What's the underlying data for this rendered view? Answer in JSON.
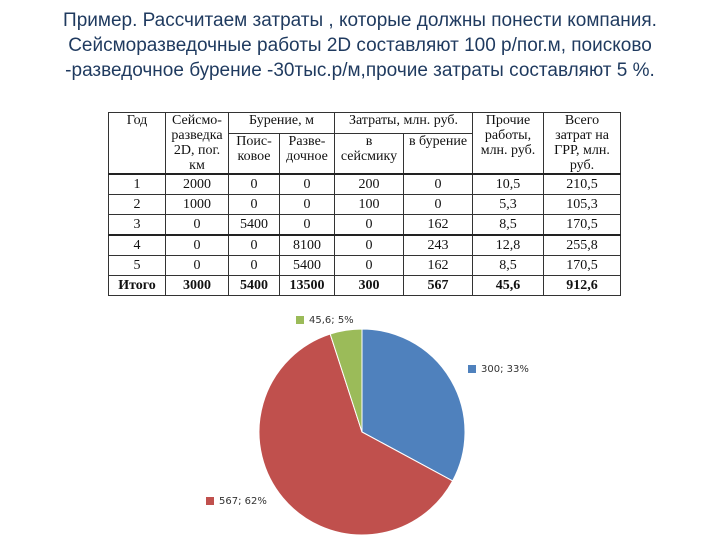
{
  "title": "Пример. Рассчитаем затраты , которые должны понести компания. Сейсморазведочные работы 2D составляют 100 р/пог.м, поисково -разведочное бурение -30тыс.р/м,прочие затраты составляют 5 %.",
  "table": {
    "headers": {
      "year": "Год",
      "seismic": "Сейсмо-разведка 2D, пог. км",
      "drilling_group": "Бурение, м",
      "drill_search": "Поис-ковое",
      "drill_explore": "Разве-дочное",
      "costs_group": "Затраты, млн. руб.",
      "cost_seismic": "в сейсмику",
      "cost_drilling": "в бурение",
      "other": "Прочие работы, млн. руб.",
      "total": "Всего затрат на ГРР, млн. руб."
    },
    "rows": [
      [
        "1",
        "2000",
        "0",
        "0",
        "200",
        "0",
        "10,5",
        "210,5"
      ],
      [
        "2",
        "1000",
        "0",
        "0",
        "100",
        "0",
        "5,3",
        "105,3"
      ],
      [
        "3",
        "0",
        "5400",
        "0",
        "0",
        "162",
        "8,5",
        "170,5"
      ],
      [
        "4",
        "0",
        "0",
        "8100",
        "0",
        "243",
        "12,8",
        "255,8"
      ],
      [
        "5",
        "0",
        "0",
        "5400",
        "0",
        "162",
        "8,5",
        "170,5"
      ],
      [
        "Итого",
        "3000",
        "5400",
        "13500",
        "300",
        "567",
        "45,6",
        "912,6"
      ]
    ]
  },
  "chart_data": {
    "type": "pie",
    "slices": [
      {
        "label": "300; 33%",
        "value": 300,
        "color": "#4f81bd"
      },
      {
        "label": "567; 62%",
        "value": 567,
        "color": "#c0504d"
      },
      {
        "label": "45,6; 5%",
        "value": 45.6,
        "color": "#9bbb59"
      }
    ]
  }
}
